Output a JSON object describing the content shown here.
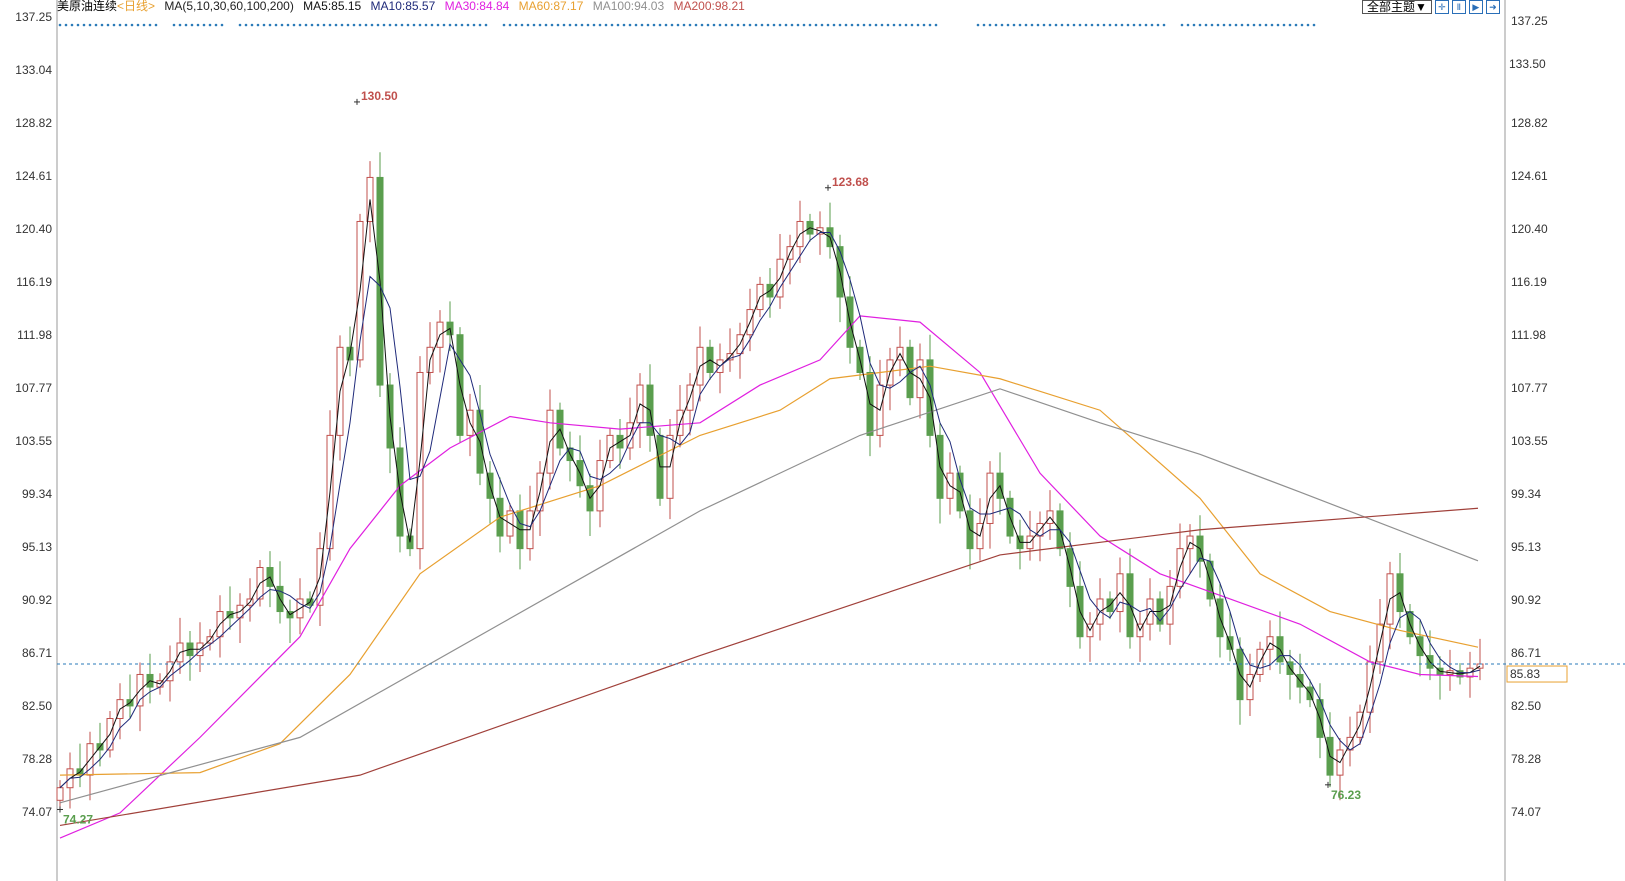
{
  "header": {
    "symbol": "美原油连续",
    "period": "<日线>",
    "ma_params": "MA(5,10,30,60,100,200)",
    "ma5": "MA5:85.15",
    "ma10": "MA10:85.57",
    "ma30": "MA30:84.84",
    "ma60": "MA60:87.17",
    "ma100": "MA100:94.03",
    "ma200": "MA200:98.21"
  },
  "toolbar": {
    "theme_label": "全部主题▼",
    "icons": [
      "crosshair-icon",
      "zoom-in-icon",
      "play-icon",
      "exit-icon"
    ]
  },
  "colors": {
    "up": "#c0504d",
    "down": "#5a9e4e",
    "ma5": "#111111",
    "ma10": "#1f2a7a",
    "ma30": "#e020e0",
    "ma60": "#e8a030",
    "ma100": "#909090",
    "ma200": "#a0403a",
    "last_line": "#2a7ab8"
  },
  "chart_data": {
    "type": "candlestick",
    "ylim": [
      74.07,
      137.25
    ],
    "y_ticks": [
      "137.25",
      "133.04",
      "128.82",
      "124.61",
      "120.40",
      "116.19",
      "111.98",
      "107.77",
      "103.55",
      "99.34",
      "95.13",
      "90.92",
      "86.71",
      "82.50",
      "78.28",
      "74.07"
    ],
    "right_extra_label": "133.50",
    "last_price": "85.83",
    "closes": [
      76.0,
      77.5,
      77,
      79.5,
      79,
      81.5,
      83,
      82.5,
      85,
      84,
      84.5,
      86,
      87.5,
      86.5,
      87.5,
      88,
      90,
      89.5,
      90.5,
      91,
      93.5,
      92,
      90,
      89.5,
      91,
      90.5,
      95,
      104,
      111,
      110,
      121,
      124.5,
      108,
      103,
      96,
      95,
      109,
      111,
      113,
      112,
      104,
      106,
      101,
      99,
      96,
      98,
      95,
      98,
      101,
      106,
      103,
      102,
      100,
      98,
      102,
      104,
      103,
      105,
      108,
      104,
      99,
      104,
      106,
      108,
      111,
      109,
      110,
      110.5,
      112,
      114,
      116,
      115,
      118,
      119,
      121,
      120,
      120.5,
      119,
      115,
      111,
      109,
      104,
      108,
      110,
      111,
      107,
      110,
      104,
      99,
      101,
      98,
      95,
      97,
      101,
      99,
      96,
      95,
      96,
      97,
      98,
      95,
      92,
      88,
      89,
      91,
      90,
      93,
      88,
      89,
      91,
      89,
      92,
      95,
      96,
      94,
      91,
      88,
      87,
      83,
      85,
      87,
      88,
      86,
      85,
      84,
      83,
      80,
      77,
      79,
      80,
      82,
      86,
      89,
      93,
      90,
      88,
      86.5,
      85.5,
      85,
      85.3,
      84.8,
      85.5,
      85.83
    ],
    "first_open": 75.0,
    "annotations": [
      {
        "text": "130.50",
        "index": 29.7,
        "value": 130.5,
        "kind": "high"
      },
      {
        "text": "123.68",
        "index": 76.8,
        "value": 123.68,
        "kind": "high"
      },
      {
        "text": "74.27",
        "index": 0,
        "value": 74.27,
        "kind": "low"
      },
      {
        "text": "76.23",
        "index": 126.8,
        "value": 76.23,
        "kind": "low"
      }
    ],
    "series": [
      {
        "name": "MA30",
        "color_key": "ma30",
        "points": [
          [
            0,
            72
          ],
          [
            6,
            74
          ],
          [
            14,
            80
          ],
          [
            24,
            88
          ],
          [
            29,
            95
          ],
          [
            34,
            100
          ],
          [
            39,
            103
          ],
          [
            45,
            105.5
          ],
          [
            49,
            105
          ],
          [
            56,
            104.5
          ],
          [
            64,
            105
          ],
          [
            70,
            108
          ],
          [
            76,
            110
          ],
          [
            80,
            113.5
          ],
          [
            86,
            113
          ],
          [
            92,
            109
          ],
          [
            98,
            101
          ],
          [
            104,
            96
          ],
          [
            110,
            93
          ],
          [
            117,
            91
          ],
          [
            124,
            89
          ],
          [
            131,
            86
          ],
          [
            136,
            85
          ],
          [
            141.8,
            84.84
          ]
        ]
      },
      {
        "name": "MA60",
        "color_key": "ma60",
        "points": [
          [
            0,
            77
          ],
          [
            14,
            77.2
          ],
          [
            22,
            79.5
          ],
          [
            29,
            85
          ],
          [
            36,
            93
          ],
          [
            44,
            97.5
          ],
          [
            54,
            100
          ],
          [
            64,
            104
          ],
          [
            72,
            106
          ],
          [
            77,
            108.5
          ],
          [
            87,
            109.5
          ],
          [
            94,
            108.5
          ],
          [
            104,
            106
          ],
          [
            114,
            99
          ],
          [
            120,
            93
          ],
          [
            127,
            90
          ],
          [
            134,
            88.5
          ],
          [
            141.8,
            87.17
          ]
        ]
      },
      {
        "name": "MA100",
        "color_key": "ma100",
        "points": [
          [
            0,
            74.8
          ],
          [
            24,
            80
          ],
          [
            44,
            89
          ],
          [
            64,
            98
          ],
          [
            80,
            104
          ],
          [
            94,
            107.7
          ],
          [
            104,
            105
          ],
          [
            114,
            102.5
          ],
          [
            124,
            99.5
          ],
          [
            141.8,
            94.03
          ]
        ]
      },
      {
        "name": "MA200",
        "color_key": "ma200",
        "points": [
          [
            0,
            73
          ],
          [
            30,
            77
          ],
          [
            64,
            86.5
          ],
          [
            94,
            94.5
          ],
          [
            114,
            96.5
          ],
          [
            141.8,
            98.21
          ]
        ]
      }
    ]
  }
}
